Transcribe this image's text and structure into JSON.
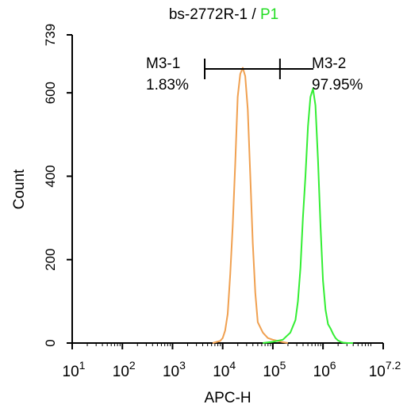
{
  "chart_data": {
    "type": "histogram",
    "title": {
      "prefix": "bs-2772R-1 / ",
      "gate": "P1",
      "gate_color": "#22dd22"
    },
    "xlabel": "APC-H",
    "ylabel": "Count",
    "x_scale": "log10",
    "xlim": [
      1,
      7.2
    ],
    "ylim": [
      0,
      739
    ],
    "x_ticks": [
      {
        "exp": 1,
        "base": "10",
        "sup": "1"
      },
      {
        "exp": 2,
        "base": "10",
        "sup": "2"
      },
      {
        "exp": 3,
        "base": "10",
        "sup": "3"
      },
      {
        "exp": 4,
        "base": "10",
        "sup": "4"
      },
      {
        "exp": 5,
        "base": "10",
        "sup": "5"
      },
      {
        "exp": 6,
        "base": "10",
        "sup": "6"
      },
      {
        "exp": 7.2,
        "base": "10",
        "sup": "7.2"
      }
    ],
    "y_ticks": [
      {
        "value": 0,
        "label": "0"
      },
      {
        "value": 200,
        "label": "200"
      },
      {
        "value": 400,
        "label": "400"
      },
      {
        "value": 600,
        "label": "600"
      },
      {
        "value": 739,
        "label": "739"
      }
    ],
    "gates": [
      {
        "name": "M3-1",
        "percent": "1.83%",
        "from": 3.8,
        "to": 5.3
      },
      {
        "name": "M3-2",
        "percent": "97.95%",
        "from": 5.3,
        "to": 7.2
      }
    ],
    "series": [
      {
        "color": "#f0a050",
        "x": [
          3.8,
          3.95,
          4.0,
          4.05,
          4.1,
          4.15,
          4.2,
          4.25,
          4.3,
          4.35,
          4.4,
          4.45,
          4.5,
          4.55,
          4.6,
          4.65,
          4.7,
          4.8,
          4.9,
          5.0,
          5.1,
          5.2,
          5.3
        ],
        "y": [
          0,
          5,
          12,
          30,
          70,
          165,
          280,
          430,
          590,
          645,
          660,
          640,
          560,
          400,
          240,
          120,
          50,
          25,
          12,
          8,
          5,
          2,
          0
        ]
      },
      {
        "color": "#33ee33",
        "x": [
          4.8,
          5.0,
          5.2,
          5.35,
          5.45,
          5.5,
          5.55,
          5.6,
          5.65,
          5.7,
          5.75,
          5.8,
          5.85,
          5.9,
          5.95,
          6.0,
          6.05,
          6.1,
          6.15,
          6.2,
          6.25,
          6.3,
          6.35,
          6.4,
          6.5,
          6.6
        ],
        "y": [
          0,
          3,
          8,
          25,
          55,
          100,
          180,
          300,
          400,
          520,
          590,
          610,
          570,
          440,
          280,
          150,
          80,
          45,
          35,
          22,
          12,
          6,
          3,
          1,
          0,
          0
        ]
      }
    ]
  }
}
